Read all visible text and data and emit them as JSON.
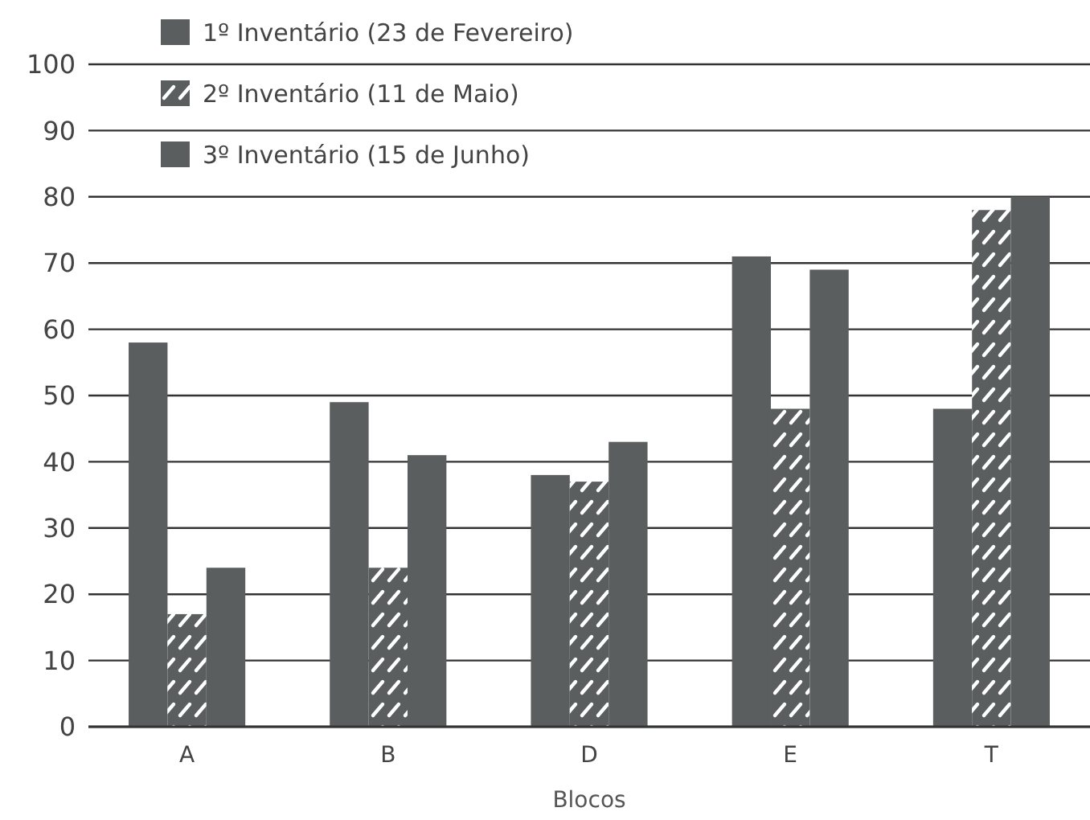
{
  "chart_data": {
    "type": "bar",
    "xlabel": "Blocos",
    "categories": [
      "A",
      "B",
      "D",
      "E",
      "T"
    ],
    "series": [
      {
        "name": "1º Inventário (23 de Fevereiro)",
        "color": "#5a5e5e",
        "values": [
          58,
          49,
          38,
          71,
          48
        ]
      },
      {
        "name": "2º Inventário (11 de Maio)",
        "color": "#5a5e5e",
        "values": [
          17,
          24,
          37,
          48,
          78
        ]
      },
      {
        "name": "3º Inventário (15 de Junho)",
        "color": "#5a5e5e",
        "values": [
          24,
          41,
          43,
          69,
          80
        ]
      }
    ],
    "ylim": [
      0,
      100
    ],
    "yticks": [
      0,
      10,
      20,
      30,
      40,
      50,
      60,
      70,
      80,
      90,
      100
    ],
    "grid": "y",
    "legend": "top left"
  }
}
